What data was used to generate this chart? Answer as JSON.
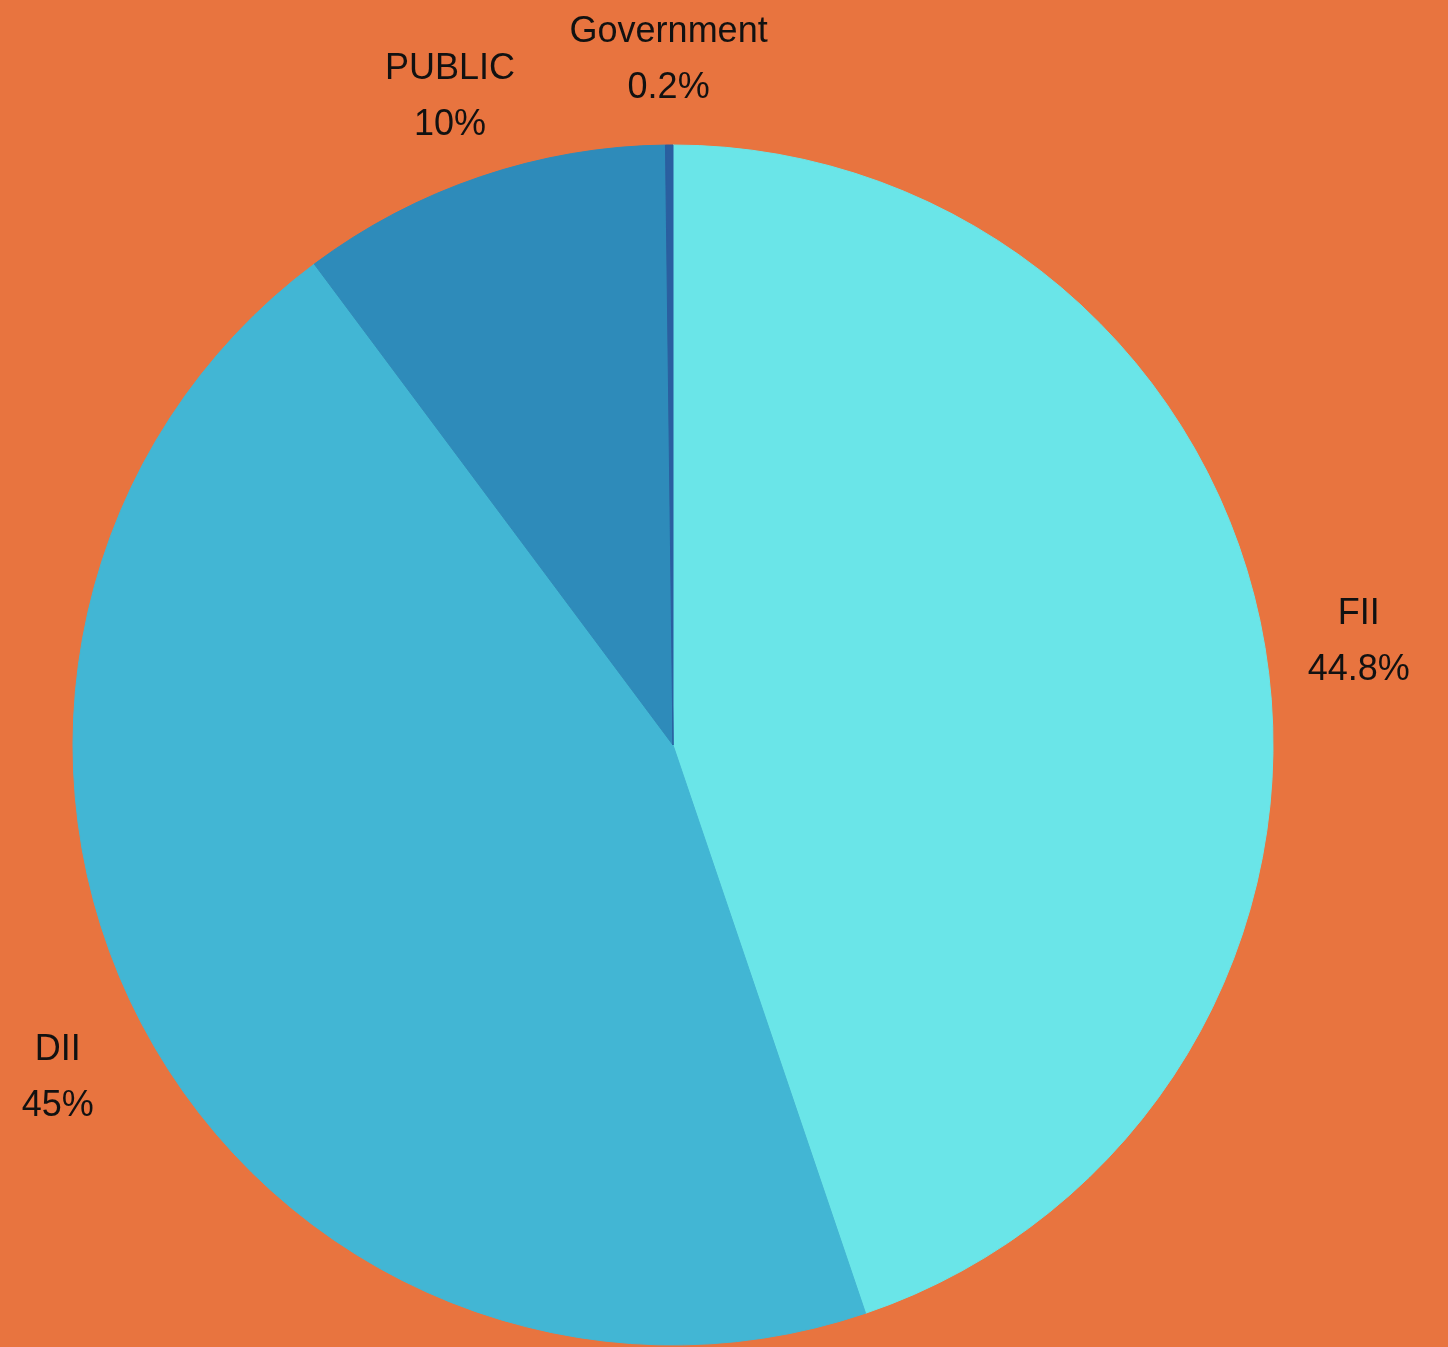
{
  "chart_data": {
    "type": "pie",
    "categories": [
      "FII",
      "DII",
      "PUBLIC",
      "Government"
    ],
    "values": [
      44.8,
      45,
      10,
      0.2
    ],
    "value_labels": [
      "44.8%",
      "45%",
      "10%",
      "0.2%"
    ],
    "colors": [
      "#6ae5e8",
      "#42b6d4",
      "#2e8bba",
      "#2a5fa0"
    ],
    "legend": false
  }
}
